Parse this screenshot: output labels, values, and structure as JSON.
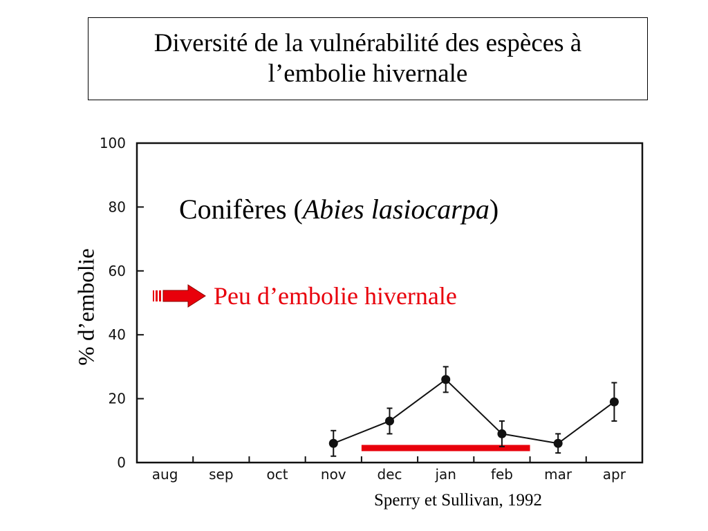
{
  "slide": {
    "title_line1": "Diversité de la vulnérabilité des espèces à",
    "title_line2": "l’embolie hivernale",
    "subtitle_main": "Conifères",
    "subtitle_paren_open": " (",
    "subtitle_species": "Abies lasiocarpa",
    "subtitle_paren_close": ")",
    "annotation": "Peu d’embolie hivernale",
    "source": "Sperry et Sullivan, 1992"
  },
  "colors": {
    "annotation": "#e8000b",
    "arrow": "#e8000b",
    "bar": "#e8000b",
    "series": "#111111"
  },
  "chart_data": {
    "type": "line",
    "ylabel": "% d’embolie",
    "xlabel": "",
    "categories": [
      "aug",
      "sep",
      "oct",
      "nov",
      "dec",
      "jan",
      "feb",
      "mar",
      "apr"
    ],
    "y_ticks": [
      "0",
      "20",
      "40",
      "60",
      "80",
      "100"
    ],
    "ylim": [
      0,
      100
    ],
    "grid": false,
    "series": [
      {
        "x": [
          "nov",
          "dec",
          "jan",
          "feb",
          "mar",
          "apr"
        ],
        "values": [
          6,
          13,
          26,
          9,
          6,
          19
        ],
        "error": [
          4,
          4,
          4,
          4,
          3,
          6
        ]
      }
    ],
    "highlight_bar": {
      "from": "dec",
      "to": "feb"
    }
  }
}
